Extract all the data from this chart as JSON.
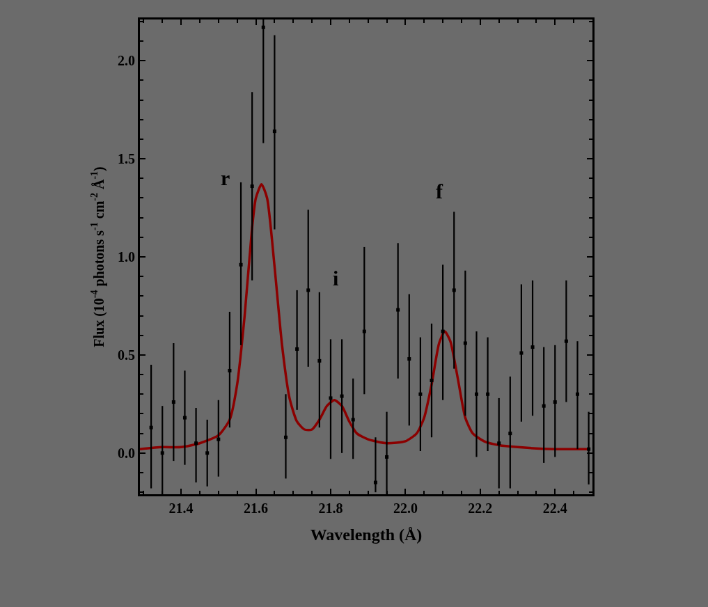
{
  "chart_data": {
    "type": "scatter",
    "xlabel": "Wavelength (Å)",
    "ylabel": "Flux (10$^{-4}$ photons s$^{-1}$ cm$^{-2}$ Å$^{-1}$)",
    "xlim": [
      21.29,
      22.5
    ],
    "ylim": [
      -0.21,
      2.21
    ],
    "xticks": [
      21.4,
      21.6,
      21.8,
      {
        "value": 22,
        "label": "22.0"
      },
      22.2,
      22.4
    ],
    "yticks": [
      {
        "value": 0,
        "label": "0.0"
      },
      {
        "value": 0.5,
        "label": "0.5"
      },
      {
        "value": 1,
        "label": "1.0"
      },
      {
        "value": 1.5,
        "label": "1.5"
      },
      {
        "value": 2,
        "label": "2.0"
      }
    ],
    "grid": false,
    "annotations": [
      "r",
      "i",
      "f"
    ],
    "series": [
      {
        "color": "#000000",
        "marker": "square",
        "x": [
          21.32,
          21.35,
          21.38,
          21.41,
          21.44,
          21.47,
          21.5,
          21.53,
          21.56,
          21.59,
          21.62,
          21.65,
          21.68,
          21.71,
          21.74,
          21.77,
          21.8,
          21.83,
          21.86,
          21.89,
          21.92,
          21.95,
          21.98,
          22.01,
          22.04,
          22.07,
          22.1,
          22.13,
          22.16,
          22.19,
          22.22,
          22.25,
          22.28,
          22.31,
          22.34,
          22.37,
          22.4,
          22.43,
          22.46,
          22.49
        ],
        "values": [
          0.13,
          0.0,
          0.26,
          0.18,
          0.05,
          0.0,
          0.07,
          0.42,
          0.96,
          1.36,
          2.17,
          1.64,
          0.08,
          0.53,
          0.83,
          0.47,
          0.28,
          0.29,
          0.17,
          0.62,
          -0.15,
          -0.02,
          0.73,
          0.48,
          0.3,
          0.37,
          0.62,
          0.83,
          0.56,
          0.3,
          0.3,
          0.05,
          0.1,
          0.51,
          0.54,
          0.24,
          0.26,
          0.57,
          0.3,
          0.02
        ],
        "errors": [
          [
            -0.18,
            0.45
          ],
          [
            -0.21,
            0.24
          ],
          [
            -0.04,
            0.56
          ],
          [
            -0.06,
            0.42
          ],
          [
            -0.15,
            0.23
          ],
          [
            -0.17,
            0.17
          ],
          [
            -0.12,
            0.27
          ],
          [
            0.13,
            0.72
          ],
          [
            0.55,
            1.38
          ],
          [
            0.88,
            1.84
          ],
          [
            1.58,
            2.21
          ],
          [
            1.14,
            2.13
          ],
          [
            -0.13,
            0.3
          ],
          [
            0.22,
            0.83
          ],
          [
            0.44,
            1.24
          ],
          [
            0.13,
            0.82
          ],
          [
            -0.03,
            0.58
          ],
          [
            0.0,
            0.58
          ],
          [
            -0.03,
            0.38
          ],
          [
            0.3,
            1.05
          ],
          [
            -0.2,
            0.08
          ],
          [
            -0.21,
            0.21
          ],
          [
            0.38,
            1.07
          ],
          [
            0.14,
            0.81
          ],
          [
            0.01,
            0.59
          ],
          [
            0.08,
            0.66
          ],
          [
            0.27,
            0.96
          ],
          [
            0.43,
            1.23
          ],
          [
            0.19,
            0.93
          ],
          [
            -0.02,
            0.62
          ],
          [
            0.01,
            0.59
          ],
          [
            -0.18,
            0.28
          ],
          [
            -0.18,
            0.39
          ],
          [
            0.16,
            0.86
          ],
          [
            0.19,
            0.88
          ],
          [
            -0.05,
            0.54
          ],
          [
            -0.02,
            0.55
          ],
          [
            0.26,
            0.88
          ],
          [
            0.02,
            0.57
          ],
          [
            -0.16,
            0.21
          ]
        ]
      },
      {
        "type": "line",
        "color": "#8b0000",
        "marker": "none",
        "line_style": "solid",
        "x": [
          21.29,
          21.35,
          21.4,
          21.45,
          21.5,
          21.53,
          21.55,
          21.57,
          21.59,
          21.6,
          21.615,
          21.63,
          21.65,
          21.67,
          21.69,
          21.71,
          21.73,
          21.75,
          21.77,
          21.79,
          21.81,
          21.83,
          21.85,
          21.87,
          21.9,
          21.95,
          22.0,
          22.03,
          22.05,
          22.07,
          22.09,
          22.105,
          22.12,
          22.14,
          22.16,
          22.18,
          22.21,
          22.25,
          22.3,
          22.4,
          22.49
        ],
        "values": [
          0.02,
          0.03,
          0.03,
          0.05,
          0.09,
          0.17,
          0.35,
          0.7,
          1.15,
          1.3,
          1.37,
          1.3,
          0.95,
          0.55,
          0.28,
          0.16,
          0.12,
          0.12,
          0.17,
          0.24,
          0.27,
          0.24,
          0.16,
          0.1,
          0.07,
          0.05,
          0.06,
          0.1,
          0.18,
          0.35,
          0.56,
          0.62,
          0.57,
          0.38,
          0.18,
          0.1,
          0.06,
          0.04,
          0.03,
          0.02,
          0.02
        ]
      }
    ]
  }
}
